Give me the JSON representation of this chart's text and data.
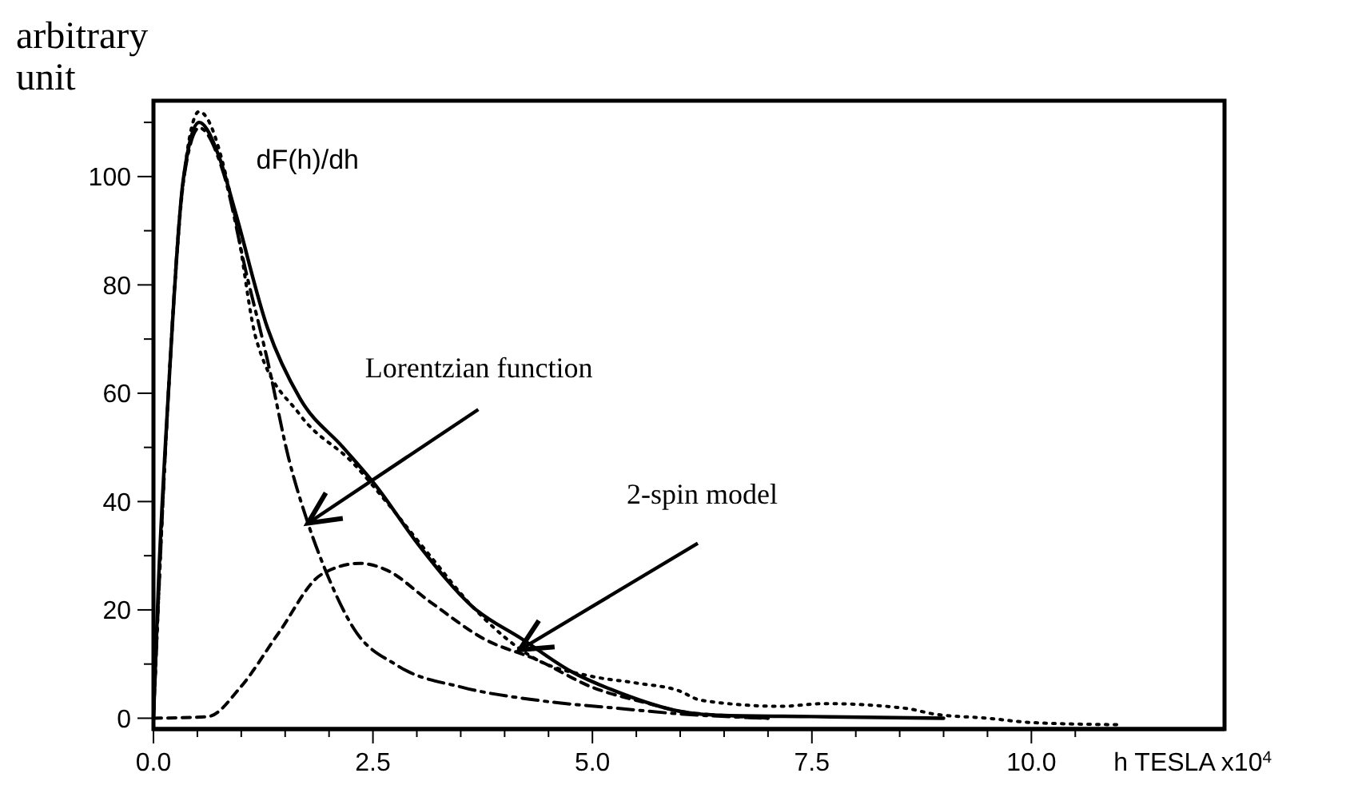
{
  "chart_data": {
    "type": "line",
    "xlabel": "h TESLA x10$^{4}$",
    "ylabel": "arbitrary unit",
    "xlim": [
      0,
      12.2
    ],
    "ylim": [
      -2,
      114
    ],
    "xticks": [
      {
        "value": 0,
        "label": "0.0"
      },
      {
        "value": 0.5,
        "label": null
      },
      {
        "value": 1,
        "label": null
      },
      {
        "value": 1.5,
        "label": null
      },
      {
        "value": 2,
        "label": null
      },
      2.5,
      {
        "value": 3,
        "label": null
      },
      {
        "value": 3.5,
        "label": null
      },
      {
        "value": 4,
        "label": null
      },
      {
        "value": 4.5,
        "label": null
      },
      {
        "value": 5,
        "label": "5.0"
      },
      {
        "value": 5.5,
        "label": null
      },
      {
        "value": 6,
        "label": null
      },
      {
        "value": 6.5,
        "label": null
      },
      {
        "value": 7,
        "label": null
      },
      7.5,
      {
        "value": 8,
        "label": null
      },
      {
        "value": 8.5,
        "label": null
      },
      {
        "value": 9,
        "label": null
      },
      {
        "value": 9.5,
        "label": null
      },
      {
        "value": 10,
        "label": "10.0"
      },
      {
        "value": 10.5,
        "label": null
      }
    ],
    "yticks": [
      0,
      {
        "value": 10,
        "label": null
      },
      20,
      {
        "value": 30,
        "label": null
      },
      40,
      {
        "value": 50,
        "label": null
      },
      60,
      {
        "value": 70,
        "label": null
      },
      80,
      {
        "value": 90,
        "label": null
      },
      100,
      {
        "value": 110,
        "label": null
      }
    ],
    "grid": false,
    "marker": "none",
    "annotations": [
      {
        "text": "Lorentzian function",
        "x": 1.76,
        "y": 36
      },
      {
        "text": "2-spin model",
        "x": 4.17,
        "y": 12.6
      }
    ],
    "series": [
      {
        "name": "dF(h)/dh",
        "color": "#000000",
        "line_style": "solid",
        "x": [
          0,
          0.06,
          0.17,
          0.34,
          0.52,
          0.74,
          0.93,
          1.3,
          1.67,
          2.16,
          2.53,
          3.02,
          3.64,
          4.2,
          4.75,
          5.31,
          5.99,
          6.5,
          7.5,
          9
        ],
        "values": [
          0,
          26,
          60,
          99.5,
          110,
          104,
          93.6,
          72,
          59,
          50,
          43,
          32,
          20.5,
          14.6,
          8.7,
          4.7,
          1.3,
          0.5,
          0.3,
          0
        ]
      },
      {
        "color": "#000000",
        "line_style": "dotted",
        "x": [
          0,
          0.17,
          0.34,
          0.52,
          0.93,
          1.17,
          1.67,
          2.28,
          2.65,
          3.15,
          3.64,
          4.38,
          5,
          5.5,
          5.98,
          6.24,
          7.15,
          7.65,
          8.58,
          8.88,
          9.5,
          10,
          11
        ],
        "values": [
          0,
          60,
          99,
          112,
          92.6,
          70,
          56,
          47,
          40,
          30,
          20.5,
          10.7,
          7.7,
          6.5,
          5.1,
          3.3,
          2.2,
          2.7,
          1.8,
          0.8,
          0,
          -0.8,
          -1.2
        ]
      },
      {
        "color": "#000000",
        "line_style": "dashdot",
        "x": [
          0,
          0.17,
          0.34,
          0.52,
          0.8,
          1.05,
          1.3,
          1.54,
          1.76,
          1.98,
          2.28,
          2.78,
          3.52,
          4.38,
          5.31,
          5.99,
          7
        ],
        "values": [
          0,
          60,
          99,
          109,
          100.5,
          82.7,
          66,
          48,
          36,
          26.5,
          16.6,
          9.7,
          5.7,
          3.3,
          1.8,
          0.8,
          0
        ]
      },
      {
        "color": "#000000",
        "line_style": "dashed",
        "x": [
          0,
          0.62,
          0.99,
          1.42,
          1.91,
          2.35,
          2.65,
          3.15,
          3.77,
          4.38,
          5,
          5.62,
          5.99,
          6.5,
          7
        ],
        "values": [
          0,
          0.3,
          5.7,
          15.6,
          26.5,
          28.6,
          27.4,
          21.5,
          14.6,
          10.7,
          5.7,
          2.8,
          1.3,
          0.5,
          0
        ]
      }
    ]
  }
}
